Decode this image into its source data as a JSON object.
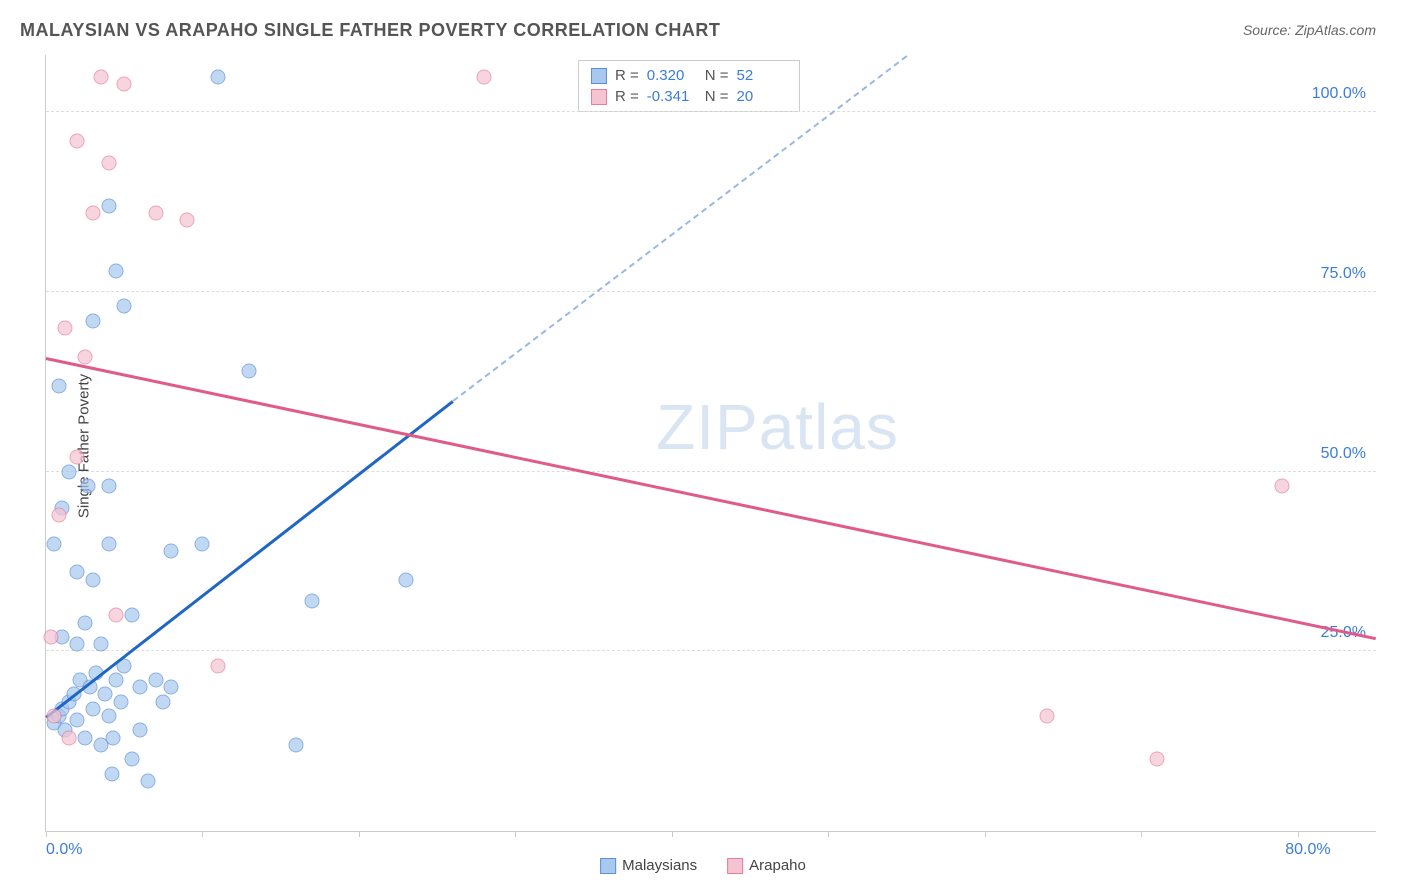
{
  "title": "MALAYSIAN VS ARAPAHO SINGLE FATHER POVERTY CORRELATION CHART",
  "source_label": "Source: ZipAtlas.com",
  "y_axis_label": "Single Father Poverty",
  "watermark_a": "ZIP",
  "watermark_b": "atlas",
  "chart": {
    "type": "scatter",
    "xlim": [
      0,
      85
    ],
    "ylim": [
      0,
      108
    ],
    "x_ticks": [
      0,
      10,
      20,
      30,
      40,
      50,
      60,
      70,
      80
    ],
    "x_tick_labels": {
      "0": "0.0%",
      "80": "80.0%"
    },
    "y_ticks": [
      25,
      50,
      75,
      100
    ],
    "y_tick_labels": {
      "25": "25.0%",
      "50": "50.0%",
      "75": "75.0%",
      "100": "100.0%"
    },
    "background_color": "#ffffff",
    "grid_color": "#dddddd",
    "axis_label_color": "#3b7dd8",
    "marker_radius": 7.5,
    "marker_opacity": 0.7
  },
  "series": [
    {
      "name": "Malaysians",
      "fill_color": "#a8c8ef",
      "stroke_color": "#5b8fd6",
      "trend_color": "#2066c4",
      "trend_dash_color": "#9bb8e0",
      "R": "0.320",
      "N": "52",
      "trend": {
        "x1": 0,
        "y1": 16,
        "x2": 26,
        "y2": 60,
        "x2_dash": 55,
        "y2_dash": 108
      },
      "points": [
        [
          0.5,
          15
        ],
        [
          0.8,
          16
        ],
        [
          1,
          17
        ],
        [
          1.2,
          14
        ],
        [
          1.5,
          18
        ],
        [
          1.8,
          19
        ],
        [
          2,
          15.5
        ],
        [
          2.2,
          21
        ],
        [
          2.5,
          13
        ],
        [
          2.8,
          20
        ],
        [
          3,
          17
        ],
        [
          3.2,
          22
        ],
        [
          3.5,
          12
        ],
        [
          3.8,
          19
        ],
        [
          4,
          16
        ],
        [
          4.2,
          8
        ],
        [
          4.5,
          21
        ],
        [
          4.8,
          18
        ],
        [
          5,
          23
        ],
        [
          5.5,
          10
        ],
        [
          6,
          20
        ],
        [
          6.5,
          7
        ],
        [
          7,
          21
        ],
        [
          7.5,
          18
        ],
        [
          8,
          20
        ],
        [
          2,
          36
        ],
        [
          3,
          35
        ],
        [
          4,
          48
        ],
        [
          4,
          40
        ],
        [
          8,
          39
        ],
        [
          10,
          40
        ],
        [
          13,
          64
        ],
        [
          3,
          71
        ],
        [
          4.5,
          78
        ],
        [
          5,
          73
        ],
        [
          4,
          87
        ],
        [
          11,
          105
        ],
        [
          17,
          32
        ],
        [
          16,
          12
        ],
        [
          23,
          35
        ],
        [
          1,
          27
        ],
        [
          2,
          26
        ],
        [
          0.5,
          40
        ],
        [
          1,
          45
        ],
        [
          2.5,
          29
        ],
        [
          3.5,
          26
        ],
        [
          5.5,
          30
        ],
        [
          1.5,
          50
        ],
        [
          0.8,
          62
        ],
        [
          6,
          14
        ],
        [
          4.3,
          13
        ],
        [
          2.7,
          48
        ]
      ]
    },
    {
      "name": "Arapaho",
      "fill_color": "#f5c4d1",
      "stroke_color": "#e77ba0",
      "trend_color": "#e05a8a",
      "R": "-0.341",
      "N": "20",
      "trend": {
        "x1": 0,
        "y1": 66,
        "x2": 85,
        "y2": 27
      },
      "points": [
        [
          0.3,
          27
        ],
        [
          0.5,
          16
        ],
        [
          1.5,
          13
        ],
        [
          2,
          52
        ],
        [
          2,
          96
        ],
        [
          2.5,
          66
        ],
        [
          3,
          86
        ],
        [
          3.5,
          105
        ],
        [
          4,
          93
        ],
        [
          5,
          104
        ],
        [
          7,
          86
        ],
        [
          9,
          85
        ],
        [
          11,
          23
        ],
        [
          28,
          105
        ],
        [
          64,
          16
        ],
        [
          71,
          10
        ],
        [
          79,
          48
        ],
        [
          0.8,
          44
        ],
        [
          1.2,
          70
        ],
        [
          4.5,
          30
        ]
      ]
    }
  ],
  "stats_box": {
    "row_label_r": "R =",
    "row_label_n": "N ="
  },
  "legend": {
    "items": [
      "Malaysians",
      "Arapaho"
    ]
  }
}
